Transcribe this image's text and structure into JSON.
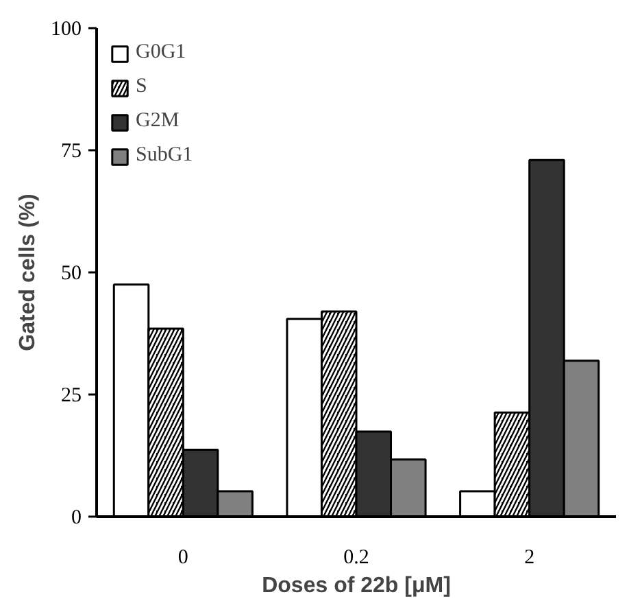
{
  "chart_data": {
    "type": "bar",
    "xlabel": "Doses of 22b [μM]",
    "ylabel": "Gated cells (%)",
    "categories": [
      "0",
      "0.2",
      "2"
    ],
    "series": [
      {
        "name": "G0G1",
        "color": "#ffffff",
        "values": [
          47.5,
          40.5,
          5.2
        ]
      },
      {
        "name": "S",
        "color": "#000000",
        "values": [
          38.5,
          42,
          21.3
        ]
      },
      {
        "name": "G2M",
        "color": "#333333",
        "values": [
          13.7,
          17.4,
          73
        ]
      },
      {
        "name": "SubG1",
        "color": "#808080",
        "values": [
          5.2,
          11.7,
          31.9
        ]
      }
    ],
    "ylim": [
      0,
      100
    ],
    "yticks": [
      0,
      25,
      50,
      75,
      100
    ],
    "grid": false,
    "legend": "top left"
  }
}
